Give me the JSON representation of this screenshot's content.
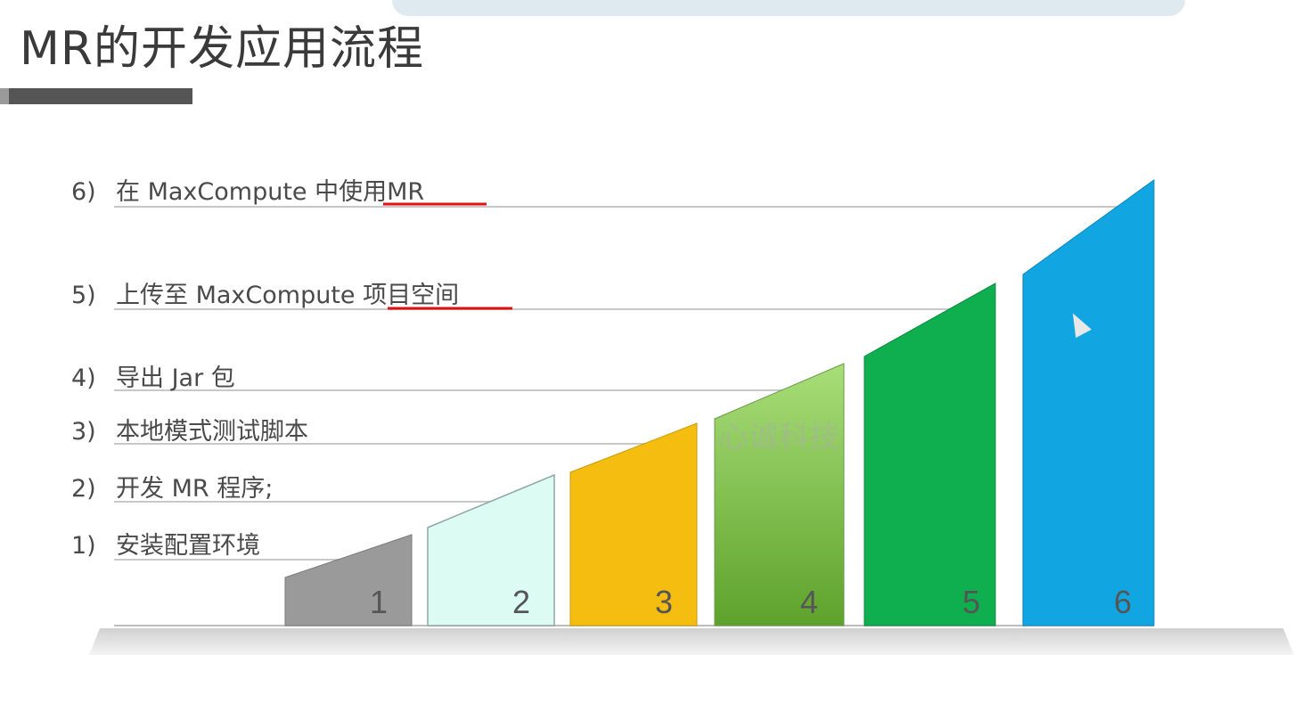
{
  "title": "MR的开发应用流程",
  "steps": [
    {
      "num": "1)",
      "text": "安装配置环境",
      "bar_label": "1",
      "color": "#9a9a9a"
    },
    {
      "num": "2)",
      "text": "开发 MR 程序;",
      "bar_label": "2",
      "color": "#dcfbf3"
    },
    {
      "num": "3)",
      "text": "本地模式测试脚本",
      "bar_label": "3",
      "color": "#f5bd10"
    },
    {
      "num": "4)",
      "text": "导出 Jar 包",
      "bar_label": "4",
      "color": "#7cc043"
    },
    {
      "num": "5)",
      "text": "上传至 MaxCompute 项目空间",
      "bar_label": "5",
      "color": "#0fae4e"
    },
    {
      "num": "6)",
      "text": "在 MaxCompute 中使用MR",
      "bar_label": "6",
      "color": "#11a6e2"
    }
  ],
  "watermark": "心诚科技",
  "colors": {
    "underline": "#e01010",
    "leader_line": "#c8c8c8",
    "base": "#d4d4d4"
  }
}
